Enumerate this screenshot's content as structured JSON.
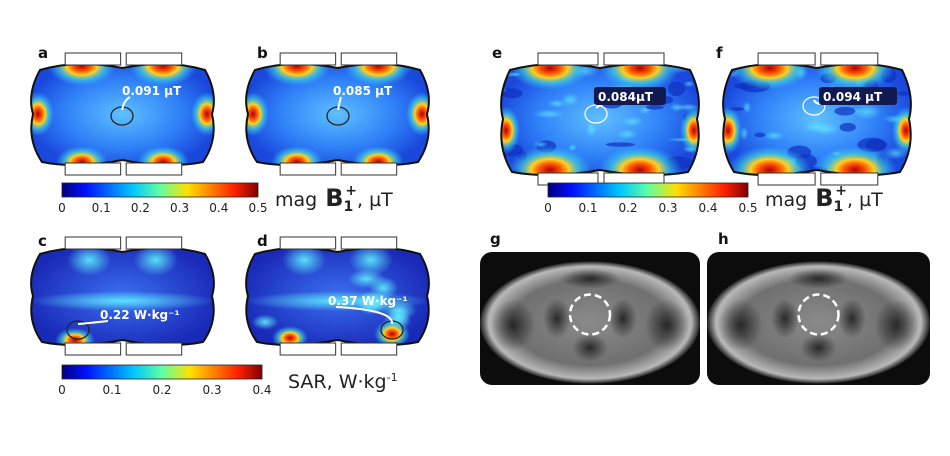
{
  "panels": [
    {
      "label": "a",
      "annotation": "0.091 µT"
    },
    {
      "label": "b",
      "annotation": "0.085 µT"
    },
    {
      "label": "c",
      "annotation": "0.22 W·kg⁻¹"
    },
    {
      "label": "d",
      "annotation": "0.37 W·kg⁻¹"
    },
    {
      "label": "e",
      "annotation": "0.084µT"
    },
    {
      "label": "f",
      "annotation": "0.094 µT"
    },
    {
      "label": "g"
    },
    {
      "label": "h"
    }
  ],
  "colorbars": [
    {
      "ticks": [
        0,
        0.1,
        0.2,
        0.3,
        0.4,
        0.5
      ],
      "label": {
        "prefix": "mag",
        "symbol": "B",
        "subscript": "1",
        "superscript": "+",
        "suffix": ", µT"
      }
    },
    {
      "ticks": [
        0,
        0.1,
        0.2,
        0.3,
        0.4
      ],
      "label": {
        "text": "SAR, W·kg",
        "superscript": "-1"
      }
    },
    {
      "ticks": [
        0,
        0.1,
        0.2,
        0.3,
        0.4,
        0.5
      ],
      "label": {
        "prefix": "mag",
        "symbol": "B",
        "subscript": "1",
        "superscript": "+",
        "suffix": ", µT"
      }
    }
  ]
}
